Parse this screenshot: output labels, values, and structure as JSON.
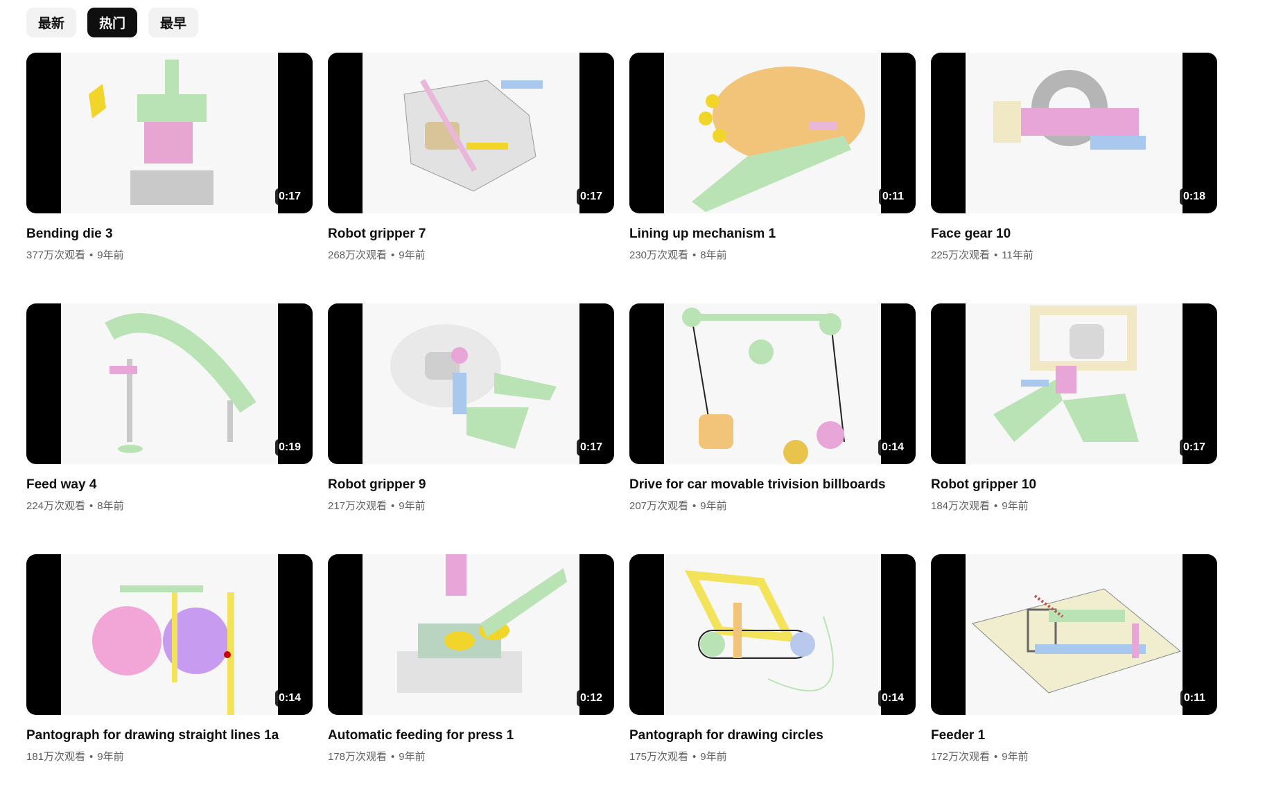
{
  "chips": [
    {
      "label": "最新",
      "active": false
    },
    {
      "label": "热门",
      "active": true
    },
    {
      "label": "最早",
      "active": false
    }
  ],
  "videos": [
    {
      "title": "Bending die 3",
      "views": "377万次观看",
      "age": "9年前",
      "duration": "0:17",
      "palette": [
        "#b9e3b4",
        "#e7a6d2",
        "#f2d52b",
        "#c9c9c9"
      ]
    },
    {
      "title": "Robot gripper 7",
      "views": "268万次观看",
      "age": "9年前",
      "duration": "0:17",
      "palette": [
        "#e2e2e2",
        "#a9c8ee",
        "#f2d52b",
        "#e8b7da"
      ]
    },
    {
      "title": "Lining up mechanism 1",
      "views": "230万次观看",
      "age": "8年前",
      "duration": "0:11",
      "palette": [
        "#f2c47a",
        "#b9e3b4",
        "#f2d52b",
        "#e8b7da"
      ]
    },
    {
      "title": "Face gear 10",
      "views": "225万次观看",
      "age": "11年前",
      "duration": "0:18",
      "palette": [
        "#b5b5b5",
        "#e8a6d8",
        "#f1e8c6",
        "#a9c8ee"
      ]
    },
    {
      "title": "Feed way 4",
      "views": "224万次观看",
      "age": "8年前",
      "duration": "0:19",
      "palette": [
        "#b9e3b4",
        "#c9c9c9",
        "#e8a6d8",
        "#e2e2e2"
      ]
    },
    {
      "title": "Robot gripper 9",
      "views": "217万次观看",
      "age": "9年前",
      "duration": "0:17",
      "palette": [
        "#e2e2e2",
        "#b9e3b4",
        "#a9c8ee",
        "#e8a6d8"
      ]
    },
    {
      "title": "Drive for car movable trivision billboards",
      "views": "207万次观看",
      "age": "9年前",
      "duration": "0:14",
      "palette": [
        "#b9e3b4",
        "#c9b3ee",
        "#e8a6d8",
        "#f2c47a"
      ]
    },
    {
      "title": "Robot gripper 10",
      "views": "184万次观看",
      "age": "9年前",
      "duration": "0:17",
      "palette": [
        "#f1e8c6",
        "#b9e3b4",
        "#e8a6d8",
        "#a9c8ee"
      ]
    },
    {
      "title": "Pantograph for drawing straight lines 1a",
      "views": "181万次观看",
      "age": "9年前",
      "duration": "0:14",
      "palette": [
        "#f2a6d8",
        "#c79bf0",
        "#f2e35a",
        "#b9e3b4"
      ]
    },
    {
      "title": "Automatic feeding for press 1",
      "views": "178万次观看",
      "age": "9年前",
      "duration": "0:12",
      "palette": [
        "#e2e2e2",
        "#e8a6d8",
        "#f2d52b",
        "#b9e3b4"
      ]
    },
    {
      "title": "Pantograph for drawing circles",
      "views": "175万次观看",
      "age": "9年前",
      "duration": "0:14",
      "palette": [
        "#f2e35a",
        "#b9c9ee",
        "#f2c47a",
        "#b9e3b4"
      ]
    },
    {
      "title": "Feeder 1",
      "views": "172万次观看",
      "age": "9年前",
      "duration": "0:11",
      "palette": [
        "#f1eecf",
        "#b9e3b4",
        "#e8a6d8",
        "#a9c8ee"
      ]
    }
  ],
  "separator": "•"
}
